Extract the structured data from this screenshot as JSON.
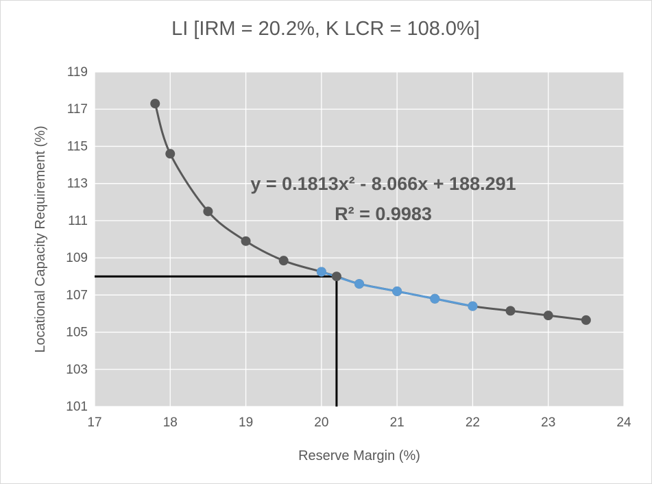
{
  "chart_data": {
    "type": "scatter",
    "title": "LI [IRM = 20.2%, K LCR = 108.0%]",
    "xlabel": "Reserve Margin (%)",
    "ylabel": "Locational Capacity Requirement (%)",
    "xlim": [
      17,
      24
    ],
    "ylim": [
      101,
      119
    ],
    "xticks": [
      "17",
      "18",
      "19",
      "20",
      "21",
      "22",
      "23",
      "24"
    ],
    "yticks": [
      "101",
      "103",
      "105",
      "107",
      "109",
      "111",
      "113",
      "115",
      "117",
      "119"
    ],
    "grid": true,
    "plot_background": "#d9d9d9",
    "series": [
      {
        "color": "#595959",
        "points": [
          {
            "x": 17.8,
            "y": 117.3
          },
          {
            "x": 18.0,
            "y": 114.6
          },
          {
            "x": 18.5,
            "y": 111.5
          },
          {
            "x": 19.0,
            "y": 109.9
          },
          {
            "x": 19.5,
            "y": 108.85
          },
          {
            "x": 20.0,
            "y": 108.25
          },
          {
            "x": 20.2,
            "y": 108.0
          },
          {
            "x": 20.5,
            "y": 107.6
          },
          {
            "x": 21.0,
            "y": 107.2
          },
          {
            "x": 21.5,
            "y": 106.8
          },
          {
            "x": 22.0,
            "y": 106.4
          },
          {
            "x": 22.5,
            "y": 106.15
          },
          {
            "x": 23.0,
            "y": 105.9
          },
          {
            "x": 23.5,
            "y": 105.65
          }
        ]
      },
      {
        "color": "#5b9bd5",
        "points": [
          {
            "x": 20.0,
            "y": 108.25
          },
          {
            "x": 20.5,
            "y": 107.6
          },
          {
            "x": 21.0,
            "y": 107.2
          },
          {
            "x": 21.5,
            "y": 106.8
          },
          {
            "x": 22.0,
            "y": 106.4
          }
        ]
      }
    ],
    "reference_lines": {
      "x": 20.2,
      "y": 108.0,
      "color": "#000000"
    },
    "annotations": [
      {
        "text": "y = 0.1813x² - 8.066x + 188.291"
      },
      {
        "text": "R² = 0.9983"
      }
    ]
  }
}
